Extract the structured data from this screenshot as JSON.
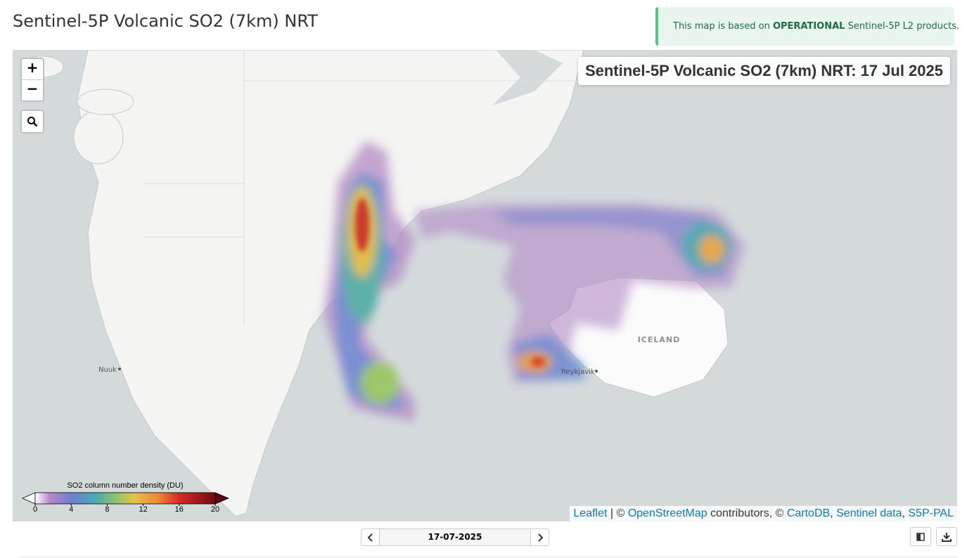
{
  "header": {
    "title": "Sentinel-5P Volcanic SO2 (7km) NRT"
  },
  "notice": {
    "parts": [
      {
        "text": "This map is based on "
      },
      {
        "text": "OPERATIONAL",
        "bold": true
      },
      {
        "text": " Sentinel-5P L2 products."
      }
    ]
  },
  "map": {
    "title": "Sentinel-5P Volcanic SO2 (7km) NRT: 17 Jul 2025",
    "zoom_in": "+",
    "zoom_out": "−",
    "places": [
      {
        "label": "Nuuk"
      },
      {
        "label": "Reykjavik"
      },
      {
        "label": "ICELAND"
      }
    ],
    "legend": {
      "title": "SO2 column number density (DU)",
      "range": [
        0,
        20
      ],
      "ticks": [
        0,
        4,
        8,
        12,
        16,
        20
      ]
    },
    "attribution": [
      {
        "text": "Leaflet",
        "link": true
      },
      {
        "text": " | © "
      },
      {
        "text": "OpenStreetMap",
        "link": true
      },
      {
        "text": " contributors, © "
      },
      {
        "text": "CartoDB",
        "link": true
      },
      {
        "text": ", "
      },
      {
        "text": "Sentinel data",
        "link": true
      },
      {
        "text": ", "
      },
      {
        "text": "S5P-PAL",
        "link": true
      }
    ]
  },
  "date_control": {
    "date": "17-07-2025"
  }
}
